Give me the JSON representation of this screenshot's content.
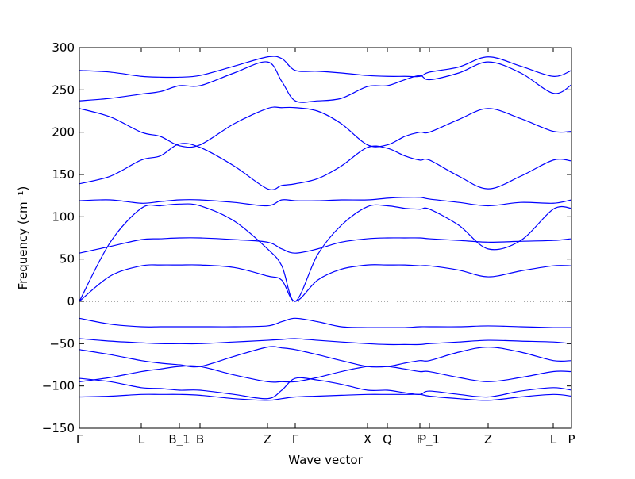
{
  "chart_data": {
    "type": "line",
    "xlabel": "Wave vector",
    "ylabel": "Frequency (cm⁻¹)",
    "x": [
      0,
      0.39,
      0.78,
      1.02,
      1.26,
      1.52,
      1.95,
      2.37,
      2.55,
      2.72,
      3.0,
      3.3,
      3.63,
      3.88,
      4.1,
      4.29,
      4.41,
      4.78,
      5.15,
      5.56,
      5.97,
      6.2
    ],
    "xlim": [
      0,
      6.2
    ],
    "xticks": [
      {
        "value": 0,
        "label": "Γ"
      },
      {
        "value": 0.78,
        "label": "L"
      },
      {
        "value": 1.26,
        "label": "B_1"
      },
      {
        "value": 1.52,
        "label": "B"
      },
      {
        "value": 2.37,
        "label": "Z"
      },
      {
        "value": 2.72,
        "label": "Γ"
      },
      {
        "value": 3.63,
        "label": "X"
      },
      {
        "value": 3.88,
        "label": "Q"
      },
      {
        "value": 4.29,
        "label": "F"
      },
      {
        "value": 4.41,
        "label": "P_1"
      },
      {
        "value": 5.15,
        "label": "Z"
      },
      {
        "value": 5.97,
        "label": "L"
      },
      {
        "value": 6.2,
        "label": "P"
      }
    ],
    "ylim": [
      -150,
      300
    ],
    "yticks": [
      {
        "value": -150,
        "label": "−150"
      },
      {
        "value": -100,
        "label": "−100"
      },
      {
        "value": -50,
        "label": "−50"
      },
      0,
      50,
      100,
      150,
      200,
      250,
      300
    ],
    "series": [
      {
        "color": "#0000ff",
        "values": [
          273,
          271,
          266,
          265,
          265,
          267,
          278,
          289,
          287,
          273,
          272,
          270,
          267,
          266,
          266,
          266,
          271,
          277,
          289,
          278,
          266,
          273
        ]
      },
      {
        "color": "#0000ff",
        "values": [
          237,
          240,
          245,
          248,
          255,
          255,
          270,
          283,
          260,
          237,
          237,
          240,
          254,
          255,
          262,
          267,
          262,
          270,
          283,
          270,
          246,
          256
        ]
      },
      {
        "color": "#0000ff",
        "values": [
          228,
          218,
          200,
          195,
          184,
          185,
          210,
          228,
          229,
          229,
          225,
          210,
          185,
          185,
          195,
          200,
          200,
          215,
          228,
          216,
          201,
          201
        ]
      },
      {
        "color": "#0000ff",
        "values": [
          139,
          148,
          167,
          172,
          186,
          182,
          160,
          133,
          137,
          139,
          145,
          160,
          182,
          181,
          172,
          167,
          167,
          148,
          133,
          148,
          167,
          166
        ]
      },
      {
        "color": "#0000ff",
        "values": [
          119,
          120,
          116,
          118,
          120,
          120,
          117,
          113,
          120,
          119,
          119,
          120,
          120,
          122,
          123,
          123,
          121,
          117,
          113,
          117,
          116,
          120
        ]
      },
      {
        "color": "#0000ff",
        "values": [
          0,
          70,
          110,
          113,
          115,
          113,
          95,
          62,
          42,
          0,
          55,
          90,
          112,
          113,
          110,
          109,
          109,
          90,
          62,
          72,
          109,
          110
        ]
      },
      {
        "color": "#0000ff",
        "values": [
          57,
          65,
          73,
          74,
          75,
          75,
          73,
          70,
          62,
          57,
          62,
          70,
          74,
          75,
          75,
          75,
          74,
          72,
          70,
          71,
          72,
          74
        ]
      },
      {
        "color": "#0000ff",
        "values": [
          0,
          30,
          42,
          43,
          43,
          43,
          40,
          30,
          25,
          0,
          25,
          38,
          43,
          43,
          43,
          42,
          42,
          37,
          29,
          36,
          42,
          42
        ]
      },
      {
        "color": "#0000ff",
        "values": [
          -20,
          -27,
          -30,
          -30,
          -30,
          -30,
          -30,
          -29,
          -24,
          -20,
          -24,
          -30,
          -31,
          -31,
          -31,
          -30,
          -30,
          -30,
          -29,
          -30,
          -31,
          -31
        ]
      },
      {
        "color": "#0000ff",
        "values": [
          -44,
          -47,
          -49,
          -50,
          -50,
          -50,
          -48,
          -46,
          -45,
          -44,
          -46,
          -48,
          -50,
          -51,
          -51,
          -51,
          -50,
          -48,
          -46,
          -47,
          -48,
          -50
        ]
      },
      {
        "color": "#0000ff",
        "values": [
          -57,
          -63,
          -70,
          -73,
          -75,
          -77,
          -65,
          -54,
          -55,
          -57,
          -63,
          -70,
          -77,
          -77,
          -73,
          -70,
          -70,
          -60,
          -54,
          -60,
          -70,
          -70
        ]
      },
      {
        "color": "#0000ff",
        "values": [
          -95,
          -90,
          -83,
          -80,
          -77,
          -77,
          -87,
          -95,
          -95,
          -95,
          -90,
          -83,
          -77,
          -77,
          -80,
          -83,
          -83,
          -90,
          -95,
          -90,
          -83,
          -83
        ]
      },
      {
        "color": "#0000ff",
        "values": [
          -91,
          -95,
          -102,
          -103,
          -105,
          -105,
          -110,
          -115,
          -105,
          -91,
          -93,
          -98,
          -105,
          -105,
          -108,
          -110,
          -106,
          -110,
          -113,
          -106,
          -102,
          -105
        ]
      },
      {
        "color": "#0000ff",
        "values": [
          -113,
          -112,
          -110,
          -110,
          -110,
          -111,
          -115,
          -117,
          -115,
          -113,
          -112,
          -111,
          -110,
          -110,
          -110,
          -110,
          -112,
          -115,
          -117,
          -113,
          -110,
          -112
        ]
      }
    ]
  }
}
